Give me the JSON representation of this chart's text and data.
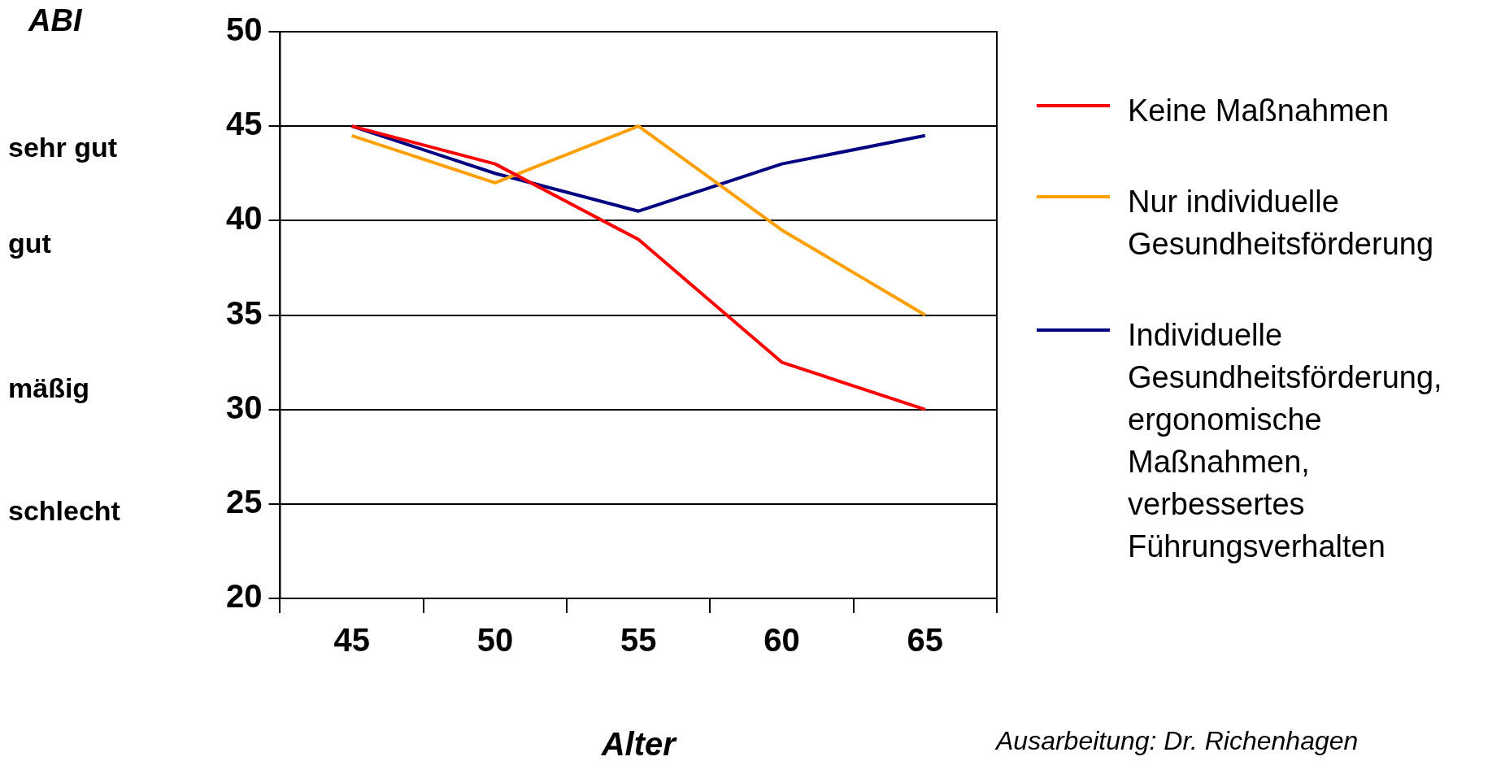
{
  "chart_data": {
    "type": "line",
    "ylabel": "ABI",
    "xlabel": "Alter",
    "categories": [
      "45",
      "50",
      "55",
      "60",
      "65"
    ],
    "series": [
      {
        "name": "Keine Maßnahmen",
        "color": "#ff0000",
        "values": [
          45,
          43,
          39,
          32.5,
          30
        ]
      },
      {
        "name": "Nur individuelle Gesundheitsförderung",
        "color": "#ffa000",
        "values": [
          44.5,
          42,
          45,
          39.5,
          35
        ]
      },
      {
        "name": "Individuelle Gesundheitsförderung, ergonomische Maßnahmen, verbessertes Führungsverhalten",
        "color": "#000080",
        "values": [
          45,
          42.5,
          40.5,
          43,
          44.5
        ]
      }
    ],
    "ylim": [
      20,
      50
    ],
    "yticks": [
      20,
      25,
      30,
      35,
      40,
      45,
      50
    ],
    "grid": "y",
    "legend": "right",
    "marker": "none",
    "line_style": "solid",
    "annotations": [
      "sehr gut",
      "gut",
      "mäßig",
      "schlecht",
      "Ausarbeitung: Dr. Richenhagen"
    ]
  }
}
